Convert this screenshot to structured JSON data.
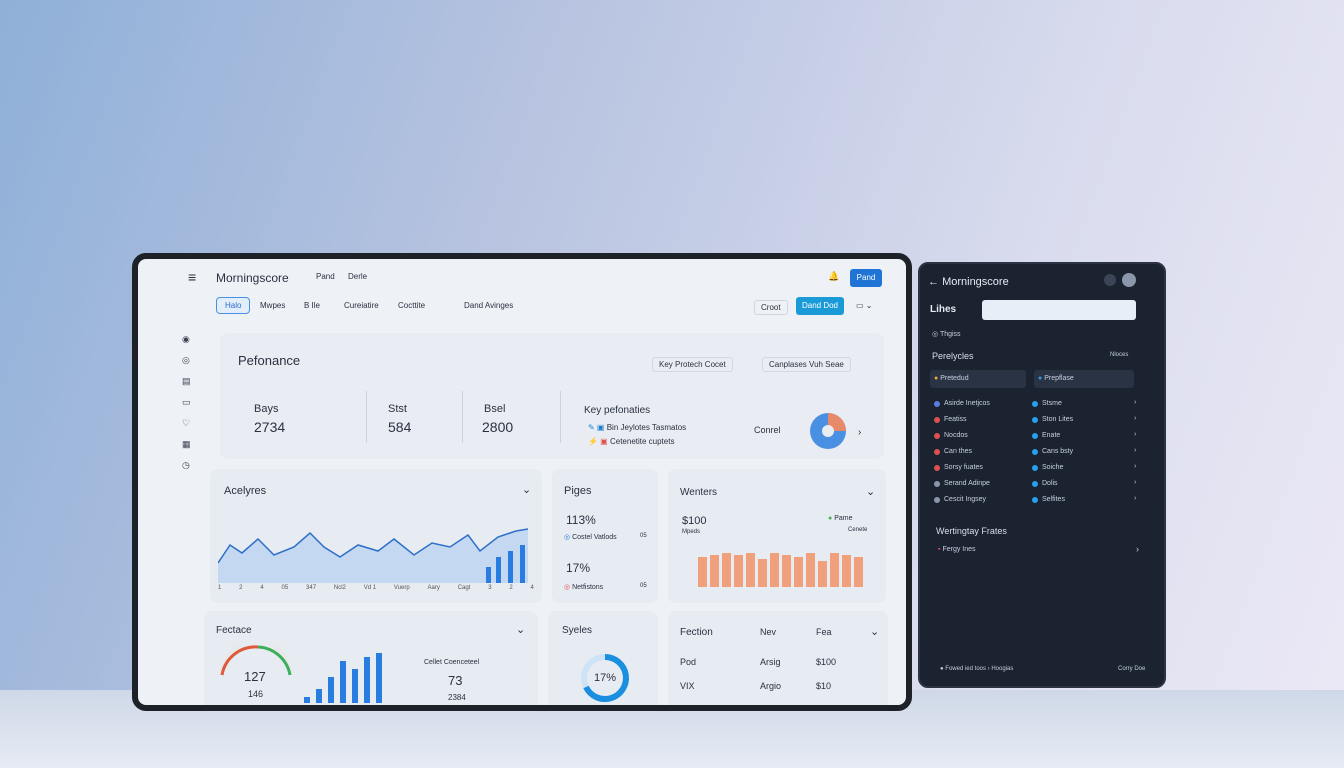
{
  "app": {
    "brand": "Morningscore",
    "nav": [
      "Pand",
      "Derle"
    ],
    "action": "Pand"
  },
  "tabs": [
    "Halo",
    "Mwpes",
    "B Ile",
    "Cureiatire",
    "Cocttite",
    "Dand Avinges"
  ],
  "toolbar": {
    "link": "Croot",
    "button": "Dand Dod"
  },
  "performance": {
    "title": "Pefonance",
    "filters": [
      "Key Protech Cocet",
      "Canplases Vuh Seae"
    ],
    "stats": [
      {
        "label": "Bays",
        "value": 2734
      },
      {
        "label": "Stst",
        "value": 584
      },
      {
        "label": "Bsel",
        "value": 2800
      }
    ],
    "key": {
      "title": "Key pefonaties",
      "items": [
        "Bin Jeylotes Tasmatos",
        "Cetenetite cuptets"
      ],
      "control": "Conrel"
    }
  },
  "analytics": {
    "title": "Acelyres",
    "x_labels": [
      "1",
      "2",
      "4",
      "05",
      "347",
      "Ncl2",
      "Vd 1",
      "Vuerp",
      "Aary",
      "Cagt",
      "3",
      "2",
      "4"
    ]
  },
  "pages": {
    "title": "Piges",
    "rows": [
      {
        "value": "113%",
        "label": "Costel Vatlods",
        "note": "05"
      },
      {
        "value": "17%",
        "label": "Netfistons",
        "note": "05"
      }
    ]
  },
  "winters": {
    "title": "Wenters",
    "value": "$100",
    "sub": "Mpeds",
    "legend": "Pame",
    "legend_sub": "Cenete"
  },
  "features": {
    "title": "Fectace",
    "gauge_value": 127,
    "gauge_sub": 146,
    "side_label": "Cellet Coenceteel",
    "side_value": 73,
    "side_sub": 2384
  },
  "cycles": {
    "title": "Syeles",
    "value": "17%"
  },
  "fashion": {
    "columns": [
      "Fection",
      "Nev",
      "Fea"
    ],
    "rows": [
      [
        "Pod",
        "Arsig",
        "$100"
      ],
      [
        "VIX",
        "Argio",
        "$10"
      ]
    ]
  },
  "phone": {
    "brand": "Morningscore",
    "heading": "Lihes",
    "tag": "Thgiss",
    "section": "Perelycles",
    "section_action": "Nloces",
    "selects": [
      "Pretedud",
      "Prepflase"
    ],
    "left_items": [
      "Asirde Inetjcos",
      "Featiss",
      "Nocdos",
      "Can thes",
      "Sorsy fuates",
      "Serand Adinpe",
      "Cescit Ingsey"
    ],
    "right_items": [
      "Stsme",
      "Ston Lites",
      "Enate",
      "Cans bsty",
      "Soiche",
      "Dolis",
      "Selfites"
    ],
    "feature_title": "Wertingtay Frates",
    "feature_item": "Fergy Ines",
    "footer": [
      "Fowed ied toos",
      "Hoogias",
      "Corry Doe"
    ]
  }
}
